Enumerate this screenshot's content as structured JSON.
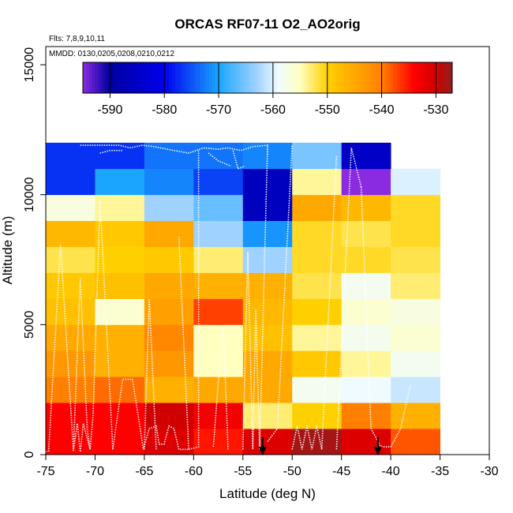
{
  "chart_data": {
    "type": "heatmap",
    "title": "ORCAS RF07-11 O2_AO2orig",
    "annotations": {
      "flights": "Flts: 7,8,9,10,11",
      "dates": "MMDD: 0130,0205,0208,0210,0212"
    },
    "xlabel": "Latitude (deg N)",
    "ylabel": "Altitude (m)",
    "xlim": [
      -75,
      -30
    ],
    "ylim": [
      0,
      15700
    ],
    "x_ticks": [
      -75,
      -70,
      -65,
      -60,
      -55,
      -50,
      -45,
      -40,
      -35,
      -30
    ],
    "x_tick_labels": [
      "-75",
      "-70",
      "-65",
      "-60",
      "-55",
      "-50",
      "-45",
      "-40",
      "-35",
      "-30"
    ],
    "y_ticks": [
      0,
      5000,
      10000,
      15000
    ],
    "y_tick_labels": [
      "0",
      "5000",
      "10000",
      "15000"
    ],
    "colorbar": {
      "min": -595,
      "max": -527,
      "ticks": [
        -590,
        -580,
        -570,
        -560,
        -550,
        -540,
        -530
      ],
      "tick_labels": [
        "-590",
        "-580",
        "-570",
        "-560",
        "-550",
        "-540",
        "-530"
      ],
      "stops": [
        [
          -595,
          "#8a2be2"
        ],
        [
          -590,
          "#0000a0"
        ],
        [
          -580,
          "#0000ee"
        ],
        [
          -570,
          "#1aa6ff"
        ],
        [
          -563,
          "#a0d2ff"
        ],
        [
          -559,
          "#f0fbff"
        ],
        [
          -555,
          "#ffffc0"
        ],
        [
          -550,
          "#ffd000"
        ],
        [
          -540,
          "#ff8000"
        ],
        [
          -534,
          "#ff0000"
        ],
        [
          -530,
          "#d00000"
        ],
        [
          -527,
          "#902020"
        ]
      ]
    },
    "lat_bins": [
      -75,
      -70,
      -65,
      -60,
      -55,
      -50,
      -45,
      -40,
      -35
    ],
    "alt_bins": [
      0,
      1000,
      2000,
      3000,
      4000,
      5000,
      6000,
      7000,
      8000,
      9000,
      10000,
      11000,
      12000
    ],
    "cells": [
      [
        -534,
        -534,
        -531,
        -535,
        -531,
        -528,
        -531,
        -538
      ],
      [
        -534,
        -534,
        -530,
        -533,
        -553,
        -550,
        -540,
        -546
      ],
      [
        -540,
        -539,
        -546,
        -545,
        -545,
        -558,
        -559,
        -561
      ],
      [
        -543,
        -546,
        -543,
        -555,
        -545,
        -549,
        -554,
        -558
      ],
      [
        -545,
        -546,
        -541,
        -555,
        -548,
        -554,
        -558,
        -556
      ],
      [
        -548,
        -556,
        -544,
        -537,
        -547,
        -550,
        -556,
        -557
      ],
      [
        -549,
        -548,
        -545,
        -546,
        -546,
        -552,
        -558,
        -553
      ],
      [
        -552,
        -550,
        -549,
        -553,
        -563,
        -551,
        -551,
        -552
      ],
      [
        -547,
        -549,
        -545,
        -563,
        -571,
        -551,
        -552,
        -551
      ],
      [
        -557,
        -554,
        -563,
        -566,
        -586,
        -545,
        -547,
        -551
      ],
      [
        -577,
        -570,
        -572,
        -576,
        -586,
        -554,
        -595,
        -560
      ],
      [
        -577,
        -577,
        -573,
        -573,
        -572,
        -565,
        -585,
        null
      ]
    ],
    "arrows_lat": [
      -53,
      -41.3
    ],
    "track_segments": [
      [
        [
          -75,
          100
        ],
        [
          -74.7,
          150
        ],
        [
          -73.5,
          8100
        ],
        [
          -72.2,
          150
        ],
        [
          -71.5,
          6800
        ],
        [
          -70.8,
          1000
        ],
        [
          -70.5,
          200
        ],
        [
          -70.2,
          1500
        ],
        [
          -69.5,
          9800
        ],
        [
          -68.2,
          200
        ]
      ],
      [
        [
          -72.2,
          150
        ],
        [
          -71.8,
          1200
        ],
        [
          -71.5,
          100
        ],
        [
          -71.2,
          1200
        ],
        [
          -70.5,
          200
        ]
      ],
      [
        [
          -68.2,
          200
        ],
        [
          -67.2,
          2900
        ],
        [
          -66.2,
          2900
        ],
        [
          -65.1,
          200
        ],
        [
          -64.5,
          1000
        ],
        [
          -63.8,
          1100
        ],
        [
          -63.5,
          400
        ],
        [
          -63,
          400
        ],
        [
          -62.5,
          1100
        ],
        [
          -62,
          1000
        ],
        [
          -61.5,
          200
        ],
        [
          -60.5,
          200
        ],
        [
          -61.5,
          8400
        ]
      ],
      [
        [
          -65,
          200
        ],
        [
          -64.5,
          6000
        ],
        [
          -63.8,
          200
        ]
      ],
      [
        [
          -60.5,
          200
        ],
        [
          -59.5,
          300
        ],
        [
          -59.5,
          11700
        ]
      ],
      [
        [
          -58,
          300
        ],
        [
          -57.5,
          2800
        ],
        [
          -57,
          5000
        ],
        [
          -56.5,
          200
        ]
      ],
      [
        [
          -55,
          200
        ],
        [
          -54.5,
          7800
        ],
        [
          -54,
          200
        ],
        [
          -53.7,
          5600
        ],
        [
          -53.3,
          200
        ],
        [
          -52.5,
          11900
        ]
      ],
      [
        [
          -52.5,
          500
        ],
        [
          -51.5,
          1000
        ],
        [
          -50,
          11900
        ]
      ],
      [
        [
          -50,
          200
        ],
        [
          -49.5,
          1100
        ],
        [
          -49,
          200
        ],
        [
          -48.5,
          1100
        ],
        [
          -48,
          200
        ],
        [
          -47.5,
          1100
        ],
        [
          -47,
          200
        ],
        [
          -45.5,
          11500
        ]
      ],
      [
        [
          -45.5,
          200
        ],
        [
          -44,
          11800
        ],
        [
          -43,
          10300
        ]
      ],
      [
        [
          -43,
          10300
        ],
        [
          -42,
          1000
        ],
        [
          -41,
          300
        ],
        [
          -40,
          300
        ],
        [
          -39,
          1000
        ],
        [
          -38,
          2700
        ]
      ],
      [
        [
          -71.5,
          11900
        ],
        [
          -70.2,
          11900
        ],
        [
          -69,
          11900
        ],
        [
          -67.5,
          11900
        ],
        [
          -66.5,
          11800
        ],
        [
          -65.2,
          11900
        ],
        [
          -64,
          11850
        ],
        [
          -62,
          11700
        ],
        [
          -60.5,
          11600
        ],
        [
          -59,
          11800
        ],
        [
          -57.5,
          11750
        ],
        [
          -56.5,
          11800
        ],
        [
          -55.2,
          11700
        ],
        [
          -54,
          11850
        ],
        [
          -52.5,
          11900
        ],
        [
          -52.5,
          11500
        ]
      ],
      [
        [
          -69.5,
          11600
        ],
        [
          -68.5,
          11700
        ],
        [
          -67.2,
          11700
        ]
      ],
      [
        [
          -58.5,
          11600
        ],
        [
          -57.5,
          11300
        ],
        [
          -56.2,
          11100
        ]
      ],
      [
        [
          -56,
          11700
        ],
        [
          -55.5,
          11000
        ],
        [
          -54.8,
          11100
        ]
      ]
    ]
  }
}
